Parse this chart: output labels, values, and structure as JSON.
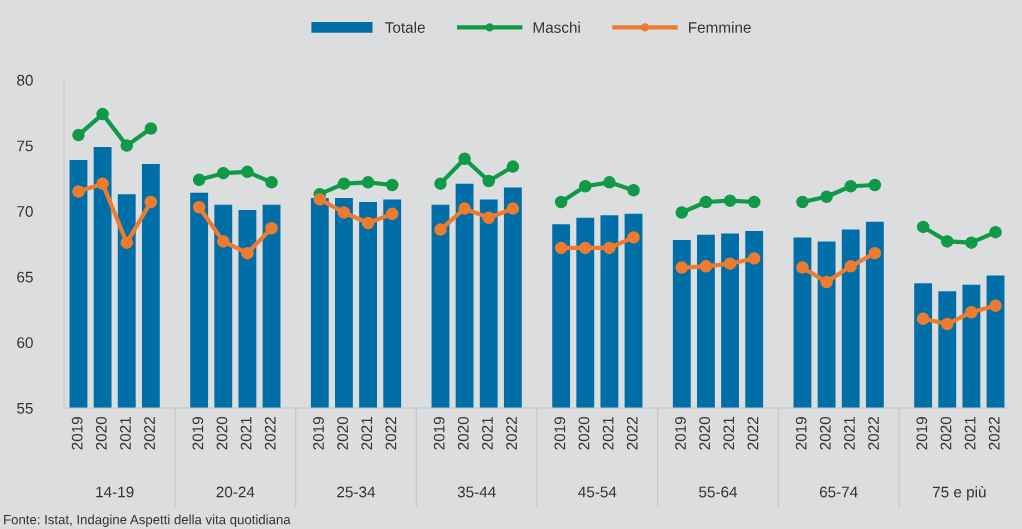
{
  "chart_data": {
    "type": "bar",
    "categories": [
      "2019",
      "2020",
      "2021",
      "2022",
      null,
      "2019",
      "2020",
      "2021",
      "2022",
      null,
      "2019",
      "2020",
      "2021",
      "2022",
      null,
      "2019",
      "2020",
      "2021",
      "2022",
      null,
      "2019",
      "2020",
      "2021",
      "2022",
      null,
      "2019",
      "2020",
      "2021",
      "2022",
      null,
      "2019",
      "2020",
      "2021",
      "2022",
      null,
      "2019",
      "2020",
      "2021",
      "2022"
    ],
    "series": [
      {
        "name": "Totale",
        "color": "#006fa8",
        "values": [
          73.9,
          74.9,
          71.3,
          73.6,
          null,
          71.4,
          70.5,
          70.1,
          70.5,
          null,
          71.0,
          71.0,
          70.7,
          70.9,
          null,
          70.5,
          72.1,
          70.9,
          71.8,
          null,
          69.0,
          69.5,
          69.7,
          69.8,
          null,
          67.8,
          68.2,
          68.3,
          68.5,
          null,
          68.0,
          67.7,
          68.6,
          69.2,
          null,
          64.5,
          63.9,
          64.4,
          65.1
        ]
      },
      {
        "name": "Maschi",
        "type": "line",
        "color": "#109a48",
        "values": [
          75.8,
          77.4,
          75.0,
          76.3,
          null,
          72.4,
          72.9,
          73.0,
          72.2,
          null,
          71.3,
          72.1,
          72.2,
          72.0,
          null,
          72.1,
          74.0,
          72.3,
          73.4,
          null,
          70.7,
          71.9,
          72.2,
          71.6,
          null,
          69.9,
          70.7,
          70.8,
          70.7,
          null,
          70.7,
          71.1,
          71.9,
          72.0,
          null,
          68.8,
          67.7,
          67.6,
          68.4
        ]
      },
      {
        "name": "Femmine",
        "type": "line",
        "color": "#ee7b2f",
        "values": [
          71.5,
          72.1,
          67.6,
          70.7,
          null,
          70.3,
          67.7,
          66.8,
          68.7,
          null,
          70.9,
          69.9,
          69.1,
          69.8,
          null,
          68.6,
          70.2,
          69.5,
          70.2,
          null,
          67.2,
          67.2,
          67.2,
          68.0,
          null,
          65.7,
          65.8,
          66.0,
          66.4,
          null,
          65.7,
          64.6,
          65.8,
          66.8,
          null,
          61.8,
          61.4,
          62.3,
          62.8
        ]
      }
    ],
    "ylim": [
      55,
      80
    ],
    "yticks": [
      55,
      60,
      65,
      70,
      75,
      80
    ],
    "annotations": [
      "14-19",
      "20-24",
      "25-34",
      "35-44",
      "45-54",
      "55-64",
      "65-74",
      "75 e più",
      "Fonte: Istat, Indagine Aspetti della vita quotidiana"
    ],
    "legend": "top",
    "marker": "circle",
    "line_style": "solid"
  }
}
